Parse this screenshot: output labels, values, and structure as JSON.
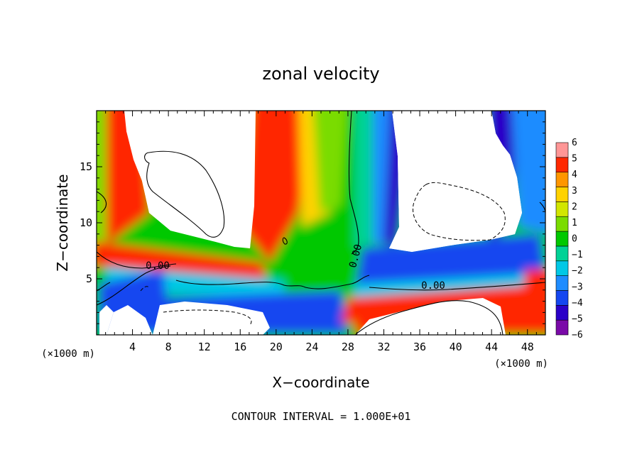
{
  "chart_data": {
    "type": "heatmap",
    "title": "zonal velocity",
    "xlabel": "X−coordinate",
    "ylabel": "Z−coordinate",
    "x_unit_left": "(×1000 m)",
    "x_unit_right": "(×1000 m)",
    "xlim": [
      0,
      50
    ],
    "ylim": [
      0,
      20
    ],
    "x_ticks": [
      4,
      8,
      12,
      16,
      20,
      24,
      28,
      32,
      36,
      40,
      44,
      48
    ],
    "y_ticks": [
      5,
      10,
      15
    ],
    "colorbar": {
      "levels": [
        -6,
        -5,
        -4,
        -3,
        -2,
        -1,
        0,
        1,
        2,
        3,
        4,
        5,
        6
      ],
      "labels": [
        "−6",
        "−5",
        "−4",
        "−3",
        "−2",
        "−1",
        "0",
        "1",
        "2",
        "3",
        "4",
        "5",
        "6"
      ],
      "colors": [
        "#7a0aa8",
        "#2a00c8",
        "#1446f0",
        "#1e8cff",
        "#00c8e6",
        "#00d296",
        "#00c800",
        "#7adc00",
        "#d2e600",
        "#ffd200",
        "#ff9600",
        "#ff2800",
        "#ff9696"
      ]
    },
    "contour_labels": [
      "0.00",
      "0.00",
      "0.00"
    ],
    "note": "CONTOUR INTERVAL = 1.000E+01"
  }
}
